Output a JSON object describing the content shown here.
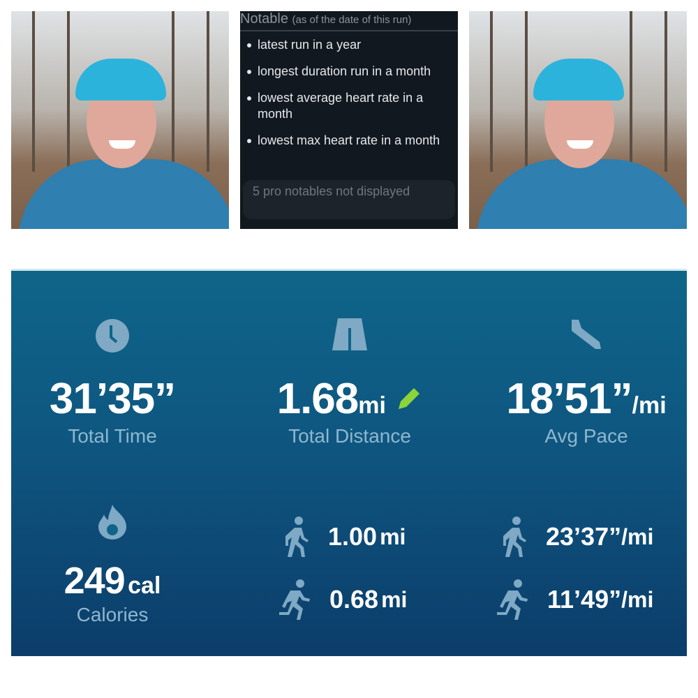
{
  "notable": {
    "title": "Notable",
    "subtitle": "(as of the date of this run)",
    "items": [
      "latest run in a year",
      "longest duration run in a month",
      "lowest average heart rate in a month",
      "lowest max heart rate in a month"
    ],
    "pro_message": "5 pro notables not displayed"
  },
  "stats": {
    "total_time": {
      "value": "31’35”",
      "label": "Total Time",
      "icon": "clock-icon"
    },
    "total_distance": {
      "value": "1.68",
      "unit": "mi",
      "label": "Total Distance",
      "icon": "road-icon",
      "edit_icon": "pencil-icon"
    },
    "avg_pace": {
      "value": "18’51”",
      "unit": "/mi",
      "label": "Avg Pace",
      "icon": "shoe-icon"
    },
    "calories": {
      "value": "249",
      "unit": "cal",
      "label": "Calories",
      "icon": "flame-icon"
    },
    "walk_distance": {
      "value": "1.00",
      "unit": "mi",
      "icon": "walking-icon"
    },
    "run_distance": {
      "value": "0.68",
      "unit": "mi",
      "icon": "running-icon"
    },
    "walk_pace": {
      "value": "23’37”",
      "unit": "/mi"
    },
    "run_pace": {
      "value": "11’49”",
      "unit": "/mi"
    }
  },
  "colors": {
    "panel_top": "#0f6589",
    "panel_bottom": "#0c3d6a",
    "icon": "#7fa9c4",
    "pencil": "#8bd43a"
  }
}
